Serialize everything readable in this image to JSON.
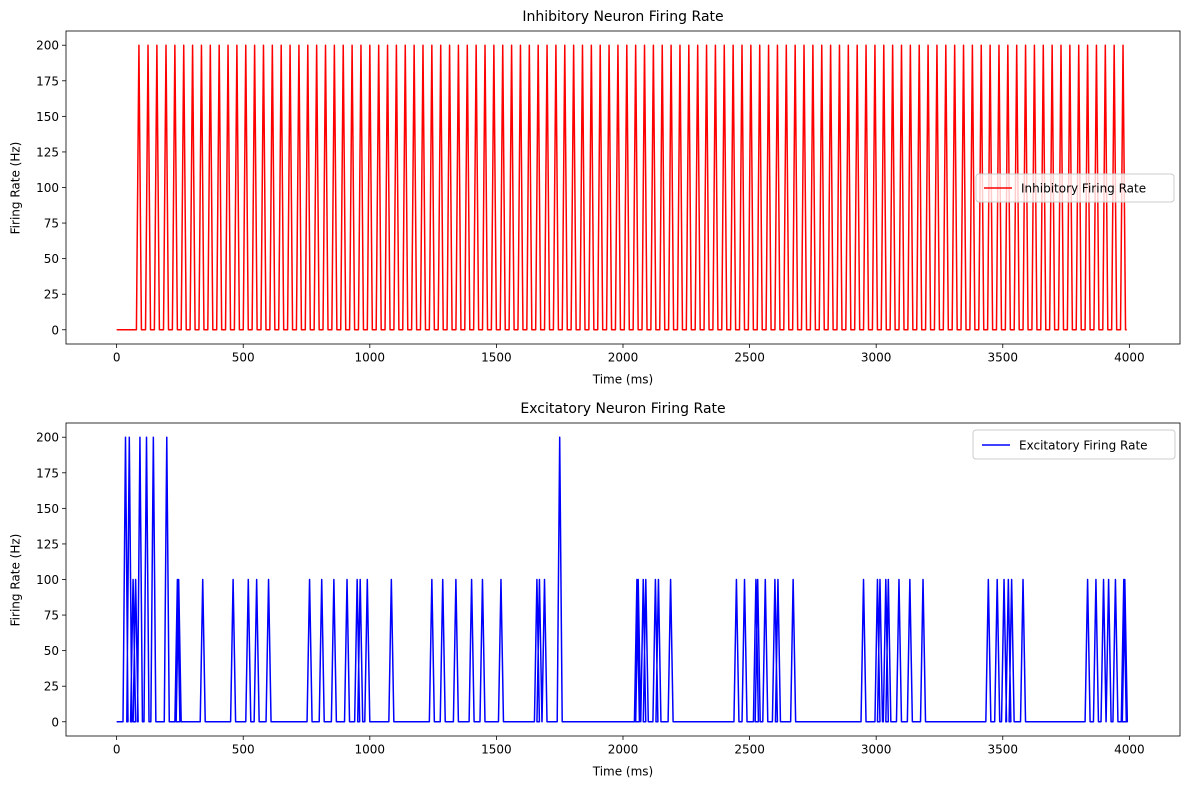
{
  "chart_data": [
    {
      "type": "line",
      "title": "Inhibitory Neuron Firing Rate",
      "xlabel": "Time (ms)",
      "ylabel": "Firing Rate (Hz)",
      "xlim": [
        -200,
        4200
      ],
      "ylim": [
        -10,
        210
      ],
      "xticks": [
        0,
        500,
        1000,
        1500,
        2000,
        2500,
        3000,
        3500,
        4000
      ],
      "yticks": [
        0,
        25,
        50,
        75,
        100,
        125,
        150,
        175,
        200
      ],
      "legend_position": "center-right",
      "series": [
        {
          "name": "Inhibitory Firing Rate",
          "color": "#ff0000",
          "x_range": [
            0,
            3990
          ],
          "baseline": 0,
          "spike_height": 200,
          "spike_times": [
            88,
            124,
            159,
            195,
            230,
            265,
            300,
            335,
            370,
            405,
            440,
            475,
            510,
            545,
            580,
            615,
            650,
            685,
            720,
            755,
            790,
            825,
            860,
            895,
            930,
            965,
            1000,
            1035,
            1070,
            1105,
            1140,
            1175,
            1210,
            1245,
            1280,
            1315,
            1350,
            1385,
            1420,
            1455,
            1490,
            1525,
            1560,
            1595,
            1630,
            1665,
            1700,
            1735,
            1770,
            1805,
            1840,
            1875,
            1910,
            1945,
            1980,
            2015,
            2050,
            2085,
            2120,
            2155,
            2190,
            2225,
            2260,
            2295,
            2330,
            2365,
            2400,
            2435,
            2470,
            2505,
            2540,
            2575,
            2610,
            2645,
            2680,
            2715,
            2750,
            2785,
            2820,
            2855,
            2890,
            2925,
            2960,
            2995,
            3030,
            3065,
            3100,
            3135,
            3170,
            3205,
            3240,
            3275,
            3310,
            3345,
            3380,
            3415,
            3450,
            3485,
            3520,
            3555,
            3590,
            3625,
            3660,
            3695,
            3730,
            3765,
            3800,
            3835,
            3870,
            3905,
            3940,
            3975
          ]
        }
      ]
    },
    {
      "type": "line",
      "title": "Excitatory Neuron Firing Rate",
      "xlabel": "Time (ms)",
      "ylabel": "Firing Rate (Hz)",
      "xlim": [
        -200,
        4200
      ],
      "ylim": [
        -10,
        210
      ],
      "xticks": [
        0,
        500,
        1000,
        1500,
        2000,
        2500,
        3000,
        3500,
        4000
      ],
      "yticks": [
        0,
        25,
        50,
        75,
        100,
        125,
        150,
        175,
        200
      ],
      "legend_position": "upper-right",
      "series": [
        {
          "name": "Excitatory Firing Rate",
          "color": "#0000ff",
          "x_range": [
            0,
            3990
          ],
          "baseline": 0,
          "spikes": [
            [
              35,
              200
            ],
            [
              50,
              200
            ],
            [
              65,
              100
            ],
            [
              75,
              100
            ],
            [
              92,
              200
            ],
            [
              118,
              200
            ],
            [
              145,
              200
            ],
            [
              198,
              200
            ],
            [
              240,
              100
            ],
            [
              245,
              100
            ],
            [
              340,
              100
            ],
            [
              460,
              100
            ],
            [
              520,
              100
            ],
            [
              553,
              100
            ],
            [
              600,
              100
            ],
            [
              762,
              100
            ],
            [
              810,
              100
            ],
            [
              858,
              100
            ],
            [
              910,
              100
            ],
            [
              950,
              100
            ],
            [
              962,
              100
            ],
            [
              990,
              100
            ],
            [
              1085,
              100
            ],
            [
              1245,
              100
            ],
            [
              1288,
              100
            ],
            [
              1340,
              100
            ],
            [
              1402,
              100
            ],
            [
              1445,
              100
            ],
            [
              1518,
              100
            ],
            [
              1660,
              100
            ],
            [
              1670,
              100
            ],
            [
              1690,
              100
            ],
            [
              1750,
              200
            ],
            [
              2055,
              100
            ],
            [
              2060,
              100
            ],
            [
              2080,
              100
            ],
            [
              2090,
              100
            ],
            [
              2128,
              100
            ],
            [
              2140,
              100
            ],
            [
              2188,
              100
            ],
            [
              2448,
              100
            ],
            [
              2480,
              100
            ],
            [
              2525,
              100
            ],
            [
              2532,
              100
            ],
            [
              2562,
              100
            ],
            [
              2600,
              100
            ],
            [
              2612,
              100
            ],
            [
              2672,
              100
            ],
            [
              2950,
              100
            ],
            [
              3005,
              100
            ],
            [
              3015,
              100
            ],
            [
              3038,
              100
            ],
            [
              3048,
              100
            ],
            [
              3090,
              100
            ],
            [
              3133,
              100
            ],
            [
              3185,
              100
            ],
            [
              3443,
              100
            ],
            [
              3478,
              100
            ],
            [
              3505,
              100
            ],
            [
              3522,
              100
            ],
            [
              3535,
              100
            ],
            [
              3580,
              100
            ],
            [
              3835,
              100
            ],
            [
              3868,
              100
            ],
            [
              3898,
              100
            ],
            [
              3918,
              100
            ],
            [
              3945,
              100
            ],
            [
              3978,
              100
            ],
            [
              3982,
              100
            ]
          ]
        }
      ]
    }
  ]
}
